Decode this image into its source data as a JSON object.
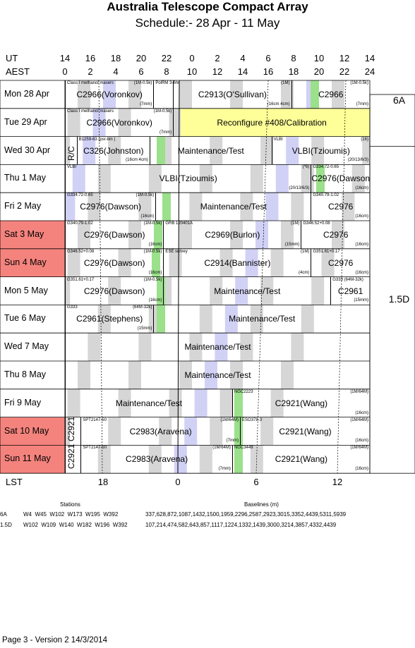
{
  "title": "Australia Telescope Compact Array",
  "subtitle": "Schedule:- 28 Apr - 11 May",
  "ut_label": "UT",
  "aest_label": "AEST",
  "lst_label": "LST",
  "ut_ticks": [
    "14",
    "16",
    "18",
    "20",
    "22",
    "0",
    "2",
    "4",
    "6",
    "8",
    "10",
    "12",
    "14"
  ],
  "aest_ticks": [
    "0",
    "2",
    "4",
    "6",
    "8",
    "10",
    "12",
    "14",
    "16",
    "18",
    "20",
    "22",
    "24"
  ],
  "lst_ticks": [
    "18",
    "0",
    "6",
    "12"
  ],
  "days": [
    {
      "label": "Mon  28 Apr",
      "weekend": false
    },
    {
      "label": "Tue  29 Apr",
      "weekend": false
    },
    {
      "label": "Wed  30 Apr",
      "weekend": false
    },
    {
      "label": "Thu   1  May",
      "weekend": false
    },
    {
      "label": "Fri    2  May",
      "weekend": false
    },
    {
      "label": "Sat   3  May",
      "weekend": true
    },
    {
      "label": "Sun   4  May",
      "weekend": true
    },
    {
      "label": "Mon   5  May",
      "weekend": false
    },
    {
      "label": "Tue   6  May",
      "weekend": false
    },
    {
      "label": "Wed  7  May",
      "weekend": false
    },
    {
      "label": "Thu   8  May",
      "weekend": false
    },
    {
      "label": "Fri    9  May",
      "weekend": false
    },
    {
      "label": "Sat  10 May",
      "weekend": true
    },
    {
      "label": "Sun  11 May",
      "weekend": true
    }
  ],
  "configs": [
    {
      "label": "6A"
    },
    {
      "label": "1.5D"
    }
  ],
  "colors": {
    "weekend": "#f4837d",
    "grey": "#cfcfcf",
    "blue": "#c9c9f5",
    "green": "#9be08b",
    "yellow": "#ffff99"
  },
  "blocks": [
    {
      "row": 0,
      "start": 0,
      "end": 4.5,
      "text": "C2966(Voronkov)",
      "small": [
        {
          "t": "Class I methanol masers",
          "p": "tl"
        },
        {
          "t": "(1M-0.5k)",
          "p": "tr"
        },
        {
          "t": "(7mm)",
          "p": "br"
        }
      ]
    },
    {
      "row": 0,
      "start": 4.5,
      "end": 5.5,
      "text": "",
      "small": [
        {
          "t": "PolRM 3-6hr",
          "p": "tl"
        }
      ]
    },
    {
      "row": 0,
      "start": 5.5,
      "end": 11.5,
      "text": "C2913(O'Sullivan)",
      "small": [
        {
          "t": "(1M)",
          "p": "tr"
        },
        {
          "t": "(16cm 4cm)",
          "p": "br"
        }
      ]
    },
    {
      "row": 0,
      "start": 11.5,
      "end": 15.5,
      "text": "C2966",
      "small": [
        {
          "t": "(1M-0.5k)",
          "p": "tr"
        },
        {
          "t": "(7mm)",
          "p": "br"
        }
      ]
    },
    {
      "row": 1,
      "start": 0,
      "end": 5.5,
      "text": "C2966(Voronkov)",
      "small": [
        {
          "t": "Class I methanol masers",
          "p": "tl"
        },
        {
          "t": "(1M-0.5k)",
          "p": "tr"
        },
        {
          "t": "(7mm)",
          "p": "br"
        }
      ]
    },
    {
      "row": 1,
      "start": 5.5,
      "end": 15.5,
      "text": "Reconfigure #408/Calibration",
      "small": []
    },
    {
      "row": 2,
      "start": 0,
      "end": 0.6,
      "text": "R/C",
      "small": [],
      "vertical": true
    },
    {
      "row": 2,
      "start": 0.6,
      "end": 4.3,
      "text": "C326(Johnston)",
      "small": [
        {
          "t": "B1259-63 (psr-bin )",
          "p": "tl"
        },
        {
          "t": "(16cm 4cm)",
          "p": "br"
        }
      ]
    },
    {
      "row": 2,
      "start": 4.3,
      "end": 10.5,
      "text": "Maintenance/Test",
      "small": []
    },
    {
      "row": 2,
      "start": 10.5,
      "end": 15.5,
      "text": "VLBI(Tzioumis)",
      "small": [
        {
          "t": "VLBI",
          "p": "tl"
        },
        {
          "t": "(16)",
          "p": "tr"
        },
        {
          "t": "(20/13/6/3)",
          "p": "br"
        }
      ]
    },
    {
      "row": 3,
      "start": 0,
      "end": 12.5,
      "text": "VLBI(Tzioumis)",
      "small": [
        {
          "t": "VLBI",
          "p": "tl"
        },
        {
          "t": "(*6)",
          "p": "tr"
        },
        {
          "t": "(20/13/6/3)",
          "p": "br"
        }
      ]
    },
    {
      "row": 3,
      "start": 12.5,
      "end": 15.5,
      "text": "C2976(Dawson)",
      "small": [
        {
          "t": "G334.72-0.65",
          "p": "tl"
        },
        {
          "t": "(16cm)",
          "p": "br"
        }
      ]
    },
    {
      "row": 4,
      "start": 0,
      "end": 4.6,
      "text": "C2976(Dawson)",
      "small": [
        {
          "t": "G334.72-0.65",
          "p": "tl"
        },
        {
          "t": "(1M-0.5k)",
          "p": "tr"
        },
        {
          "t": "(16cm)",
          "p": "br"
        }
      ]
    },
    {
      "row": 4,
      "start": 4.6,
      "end": 12.5,
      "text": "Maintenance/Test",
      "small": []
    },
    {
      "row": 4,
      "start": 12.5,
      "end": 15.5,
      "text": "C2976",
      "small": [
        {
          "t": "G340.79-1.02",
          "p": "tl"
        },
        {
          "t": "(16cm)",
          "p": "br"
        }
      ]
    },
    {
      "row": 5,
      "start": 0,
      "end": 5,
      "text": "C2976(Dawson)",
      "small": [
        {
          "t": "G340.79-1.02",
          "p": "tl"
        },
        {
          "t": "(1M-0.5k)",
          "p": "tr"
        },
        {
          "t": "(16cm)",
          "p": "br"
        }
      ]
    },
    {
      "row": 5,
      "start": 5,
      "end": 12,
      "text": "C2969(Burlon)",
      "small": [
        {
          "t": "GRB 120401A",
          "p": "tl"
        },
        {
          "t": "(1M)",
          "p": "tr"
        },
        {
          "t": "(15mm)",
          "p": "br"
        }
      ]
    },
    {
      "row": 5,
      "start": 12,
      "end": 15.5,
      "text": "C2976",
      "small": [
        {
          "t": "G346.52+0.08",
          "p": "tl"
        },
        {
          "t": "(16cm)",
          "p": "br"
        }
      ]
    },
    {
      "row": 6,
      "start": 0,
      "end": 5,
      "text": "C2976(Dawson)",
      "small": [
        {
          "t": "G346.52+0.08",
          "p": "tl"
        },
        {
          "t": "(1M-0.5k)",
          "p": "tr"
        },
        {
          "t": "(16cm)",
          "p": "br"
        }
      ]
    },
    {
      "row": 6,
      "start": 5,
      "end": 12.5,
      "text": "C2914(Bannister)",
      "small": [
        {
          "t": "ESE survey",
          "p": "tl"
        },
        {
          "t": "(1M)",
          "p": "tr"
        },
        {
          "t": "(4cm)",
          "p": "br"
        }
      ]
    },
    {
      "row": 6,
      "start": 12.5,
      "end": 15.5,
      "text": "C2976",
      "small": [
        {
          "t": "G351.61+0.17",
          "p": "tl"
        },
        {
          "t": "(16cm)",
          "p": "br"
        }
      ]
    },
    {
      "row": 7,
      "start": 0,
      "end": 5,
      "text": "C2976(Dawson)",
      "small": [
        {
          "t": "G351.61+0.17",
          "p": "tl"
        },
        {
          "t": "(1M-0.5k)",
          "p": "tr"
        },
        {
          "t": "(16cm)",
          "p": "br"
        }
      ]
    },
    {
      "row": 7,
      "start": 5,
      "end": 13.5,
      "text": "Maintenance/Test",
      "small": []
    },
    {
      "row": 7,
      "start": 13.5,
      "end": 15.5,
      "text": "C2961",
      "small": [
        {
          "t": "G333 (64M-32k)",
          "p": "tl"
        },
        {
          "t": "(15mm)",
          "p": "br"
        }
      ]
    },
    {
      "row": 8,
      "start": 0,
      "end": 4.5,
      "text": "C2961(Stephens)",
      "small": [
        {
          "t": "G333",
          "p": "tl"
        },
        {
          "t": "(64M-32k)",
          "p": "tr"
        },
        {
          "t": "(15mm)",
          "p": "br"
        }
      ]
    },
    {
      "row": 8,
      "start": 4.5,
      "end": 15.5,
      "text": "Maintenance/Test",
      "small": []
    },
    {
      "row": 9,
      "start": 0,
      "end": 15.5,
      "text": "Maintenance/Test",
      "small": []
    },
    {
      "row": 10,
      "start": 0,
      "end": 15.5,
      "text": "Maintenance/Test",
      "small": []
    },
    {
      "row": 11,
      "start": 0,
      "end": 8.5,
      "text": "Maintenance/Test",
      "small": []
    },
    {
      "row": 11,
      "start": 8.5,
      "end": 15.5,
      "text": "C2921(Wang)",
      "small": [
        {
          "t": "NGC2223",
          "p": "tl"
        },
        {
          "t": "(1M/64M)",
          "p": "tr"
        },
        {
          "t": "(16cm)",
          "p": "br"
        }
      ]
    },
    {
      "row": 12,
      "start": 0,
      "end": 0.8,
      "text": "C2921",
      "small": [],
      "vertical": true
    },
    {
      "row": 12,
      "start": 0.8,
      "end": 8.9,
      "text": "C2983(Aravena)",
      "small": [
        {
          "t": "SPT2147-50",
          "p": "tl"
        },
        {
          "t": "(1M/64M)",
          "p": "tr"
        },
        {
          "t": "(7mm)",
          "p": "br"
        }
      ]
    },
    {
      "row": 12,
      "start": 8.9,
      "end": 15.5,
      "text": "C2921(Wang)",
      "small": [
        {
          "t": "ESO378-3",
          "p": "tl"
        },
        {
          "t": "(1M/64M)",
          "p": "tr"
        },
        {
          "t": "(16cm)",
          "p": "br"
        }
      ]
    },
    {
      "row": 13,
      "start": 0,
      "end": 0.8,
      "text": "C2921",
      "small": [],
      "vertical": true
    },
    {
      "row": 13,
      "start": 0.8,
      "end": 8.5,
      "text": "C2983(Aravena)",
      "small": [
        {
          "t": "SPT2147-50",
          "p": "tl"
        },
        {
          "t": "(1M/64M)",
          "p": "tr"
        },
        {
          "t": "(7mm)",
          "p": "br"
        }
      ]
    },
    {
      "row": 13,
      "start": 8.5,
      "end": 15.5,
      "text": "C2921(Wang)",
      "small": [
        {
          "t": "NGC3449",
          "p": "tl"
        },
        {
          "t": "(1M/64M)",
          "p": "tr"
        },
        {
          "t": "(16cm)",
          "p": "br"
        }
      ]
    }
  ],
  "footer": {
    "stations_header": "Stations",
    "baselines_header": "Baselines (m)",
    "rows": [
      {
        "config": "6A",
        "stations": "W4  W45  W102  W173  W195  W392",
        "baselines": "337,628,872,1087,1432,1500,1959,2296,2587,2923,3015,3352,4439,5311,5939"
      },
      {
        "config": "1.5D",
        "stations": "W102  W109  W140  W182  W196  W392",
        "baselines": "107,214,474,582,643,857,1117,1224,1332,1439,3000,3214,3857,4332,4439"
      }
    ],
    "page_info": "Page 3 - Version 2  14/3/2014"
  }
}
